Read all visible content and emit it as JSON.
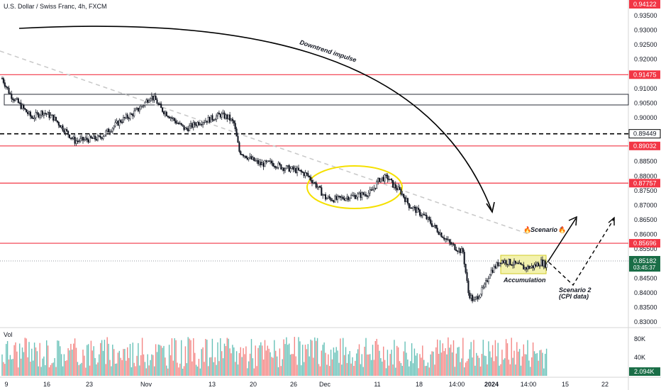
{
  "chart_title": "U.S. Dollar / Swiss Franc, 4h, FXCM",
  "volume_label": "Vol",
  "chart_data": {
    "type": "candlestick",
    "y_ticks": [
      "0.93500",
      "0.93000",
      "0.92500",
      "0.92000",
      "0.91500",
      "0.91000",
      "0.90500",
      "0.90000",
      "0.89500",
      "0.89000",
      "0.88500",
      "0.88000",
      "0.87500",
      "0.87000",
      "0.86500",
      "0.86000",
      "0.85500",
      "0.85000",
      "0.84500",
      "0.84000",
      "0.83500",
      "0.83000"
    ],
    "x_ticks": [
      "9",
      "16",
      "23",
      "Nov",
      "13",
      "20",
      "26",
      "Dec",
      "11",
      "18",
      "14:00",
      "2024",
      "14:00",
      "15",
      "22"
    ],
    "volume_ticks": [
      "80K",
      "40K"
    ],
    "ylim": [
      0.83,
      0.9412
    ],
    "price_path": [
      [
        0,
        0.9135
      ],
      [
        6,
        0.908
      ],
      [
        14,
        0.904
      ],
      [
        22,
        0.9
      ],
      [
        30,
        0.902
      ],
      [
        38,
        0.9
      ],
      [
        46,
        0.896
      ],
      [
        54,
        0.892
      ],
      [
        62,
        0.8925
      ],
      [
        72,
        0.893
      ],
      [
        80,
        0.896
      ],
      [
        88,
        0.899
      ],
      [
        96,
        0.901
      ],
      [
        104,
        0.904
      ],
      [
        110,
        0.9075
      ],
      [
        114,
        0.906
      ],
      [
        118,
        0.903
      ],
      [
        122,
        0.9015
      ],
      [
        128,
        0.899
      ],
      [
        136,
        0.896
      ],
      [
        146,
        0.8985
      ],
      [
        154,
        0.8995
      ],
      [
        162,
        0.901
      ],
      [
        168,
        0.9
      ],
      [
        172,
        0.898
      ],
      [
        176,
        0.8885
      ],
      [
        184,
        0.886
      ],
      [
        192,
        0.884
      ],
      [
        200,
        0.8845
      ],
      [
        208,
        0.883
      ],
      [
        218,
        0.882
      ],
      [
        226,
        0.8805
      ],
      [
        232,
        0.8775
      ],
      [
        240,
        0.8725
      ],
      [
        248,
        0.872
      ],
      [
        258,
        0.873
      ],
      [
        266,
        0.8735
      ],
      [
        274,
        0.8745
      ],
      [
        280,
        0.879
      ],
      [
        286,
        0.8795
      ],
      [
        290,
        0.877
      ],
      [
        296,
        0.8745
      ],
      [
        302,
        0.87
      ],
      [
        308,
        0.868
      ],
      [
        314,
        0.866
      ],
      [
        320,
        0.863
      ],
      [
        326,
        0.86
      ],
      [
        332,
        0.857
      ],
      [
        338,
        0.855
      ],
      [
        342,
        0.854
      ],
      [
        346,
        0.84
      ],
      [
        350,
        0.837
      ],
      [
        354,
        0.8395
      ],
      [
        358,
        0.842
      ],
      [
        362,
        0.847
      ],
      [
        366,
        0.849
      ],
      [
        370,
        0.851
      ],
      [
        376,
        0.8505
      ],
      [
        382,
        0.8495
      ],
      [
        388,
        0.8485
      ],
      [
        394,
        0.849
      ],
      [
        400,
        0.8505
      ],
      [
        404,
        0.8495
      ]
    ],
    "levels": [
      {
        "price": "0.91475",
        "value": 0.91475,
        "style": "solid-red"
      },
      {
        "price": "0.89449",
        "value": 0.89449,
        "style": "dashed-black"
      },
      {
        "price": "0.89032",
        "value": 0.89032,
        "style": "solid-red"
      },
      {
        "price": "0.87757",
        "value": 0.87757,
        "style": "solid-red"
      },
      {
        "price": "0.85696",
        "value": 0.85696,
        "style": "solid-red"
      }
    ],
    "top_price_label": "0.94122",
    "current_price": "0.85182",
    "countdown": "03:45:37",
    "volume_value": "2.094K",
    "colors": {
      "up": "#26a69a",
      "down": "#ef5350",
      "level": "#f23645",
      "candle": "#131722",
      "accent": "#1a6e47"
    }
  },
  "annotations": {
    "downtrend": "Downtrend impulse",
    "scenario1": "Scenario 1",
    "scenario2_line1": "Scenario 2",
    "scenario2_line2": "(CPI data)",
    "accumulation": "Accumulation",
    "fire_icon": "fire-emoji"
  }
}
